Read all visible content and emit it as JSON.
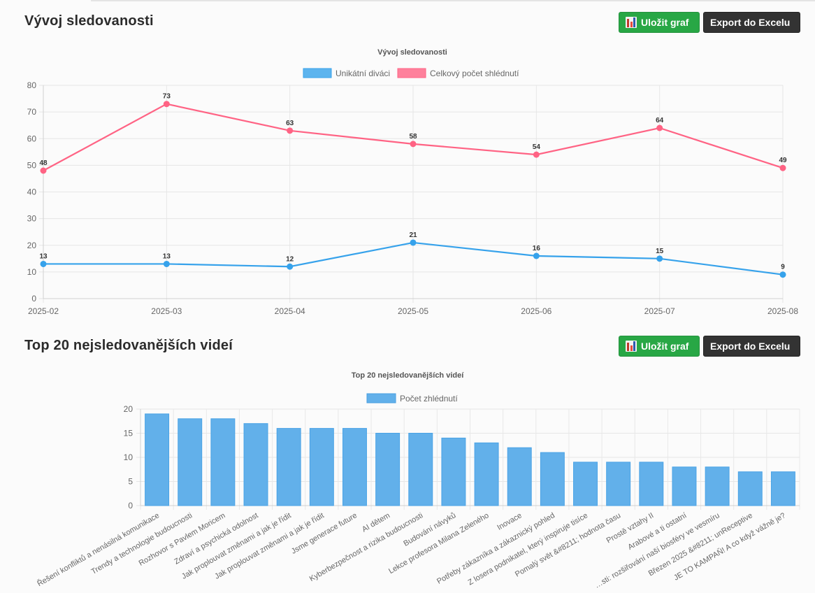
{
  "sections": [
    {
      "title": "Vývoj sledovanosti",
      "save_label": "Uložit graf",
      "export_label": "Export do Excelu",
      "save_icon": "bar-chart-icon"
    },
    {
      "title": "Top 20 nejsledovanějších videí",
      "save_label": "Uložit graf",
      "export_label": "Export do Excelu",
      "save_icon": "bar-chart-icon"
    }
  ],
  "colors": {
    "blue": "#36a2eb",
    "blue_fill": "#62b0ea",
    "pink": "#ff6384",
    "save_green": "#28a745",
    "export_dark": "#333333"
  },
  "chart_data": [
    {
      "type": "line",
      "title": "Vývoj sledovanosti",
      "x": [
        "2025-02",
        "2025-03",
        "2025-04",
        "2025-05",
        "2025-06",
        "2025-07",
        "2025-08"
      ],
      "series": [
        {
          "name": "Unikátní diváci",
          "color": "#36a2eb",
          "values": [
            13,
            13,
            12,
            21,
            16,
            15,
            9
          ]
        },
        {
          "name": "Celkový počet shlédnutí",
          "color": "#ff6384",
          "values": [
            48,
            73,
            63,
            58,
            54,
            64,
            49
          ]
        }
      ],
      "xlabel": "",
      "ylabel": "",
      "ylim": [
        0,
        80
      ],
      "yticks": [
        0,
        10,
        20,
        30,
        40,
        50,
        60,
        70,
        80
      ],
      "grid": true,
      "legend": "top-center",
      "data_labels": true
    },
    {
      "type": "bar",
      "title": "Top 20 nejsledovanějších videí",
      "categories": [
        "Řešení konfliktů a nenásilná komunikace",
        "Trendy a technologie budoucnosti",
        "Rozhovor s Pavlem Moricem",
        "Zdraví a psychická odolnost",
        "Jak proplouvat změnami a jak je řídit",
        "Jak proplouvat změnami a jak je řídit",
        "Jsme generace future",
        "AI dětem",
        "Kyberbezpečnost a rizika budoucnosti",
        "Budování návyků",
        "Lekce profesora Milana Zeleného",
        "Inovace",
        "Potřeby zákazníka a zákaznický pohled",
        "Z losera podnikatel, který inspiruje tisíce",
        "Pomalý svět &#8211; hodnota času",
        "Prostě vztahy II",
        "Arabové a ti ostatní",
        "…sti: rozšiřování naší biosféry ve vesmíru",
        "Březen 2025 &#8211; unReceptive",
        "JE TO KAMPAŇ! A co když vážně je?"
      ],
      "series": [
        {
          "name": "Počet zhlédnutí",
          "color": "#62b0ea",
          "values": [
            19,
            18,
            18,
            17,
            16,
            16,
            16,
            15,
            15,
            14,
            13,
            12,
            11,
            9,
            9,
            9,
            8,
            8,
            7,
            7
          ]
        }
      ],
      "xlabel": "",
      "ylabel": "",
      "ylim": [
        0,
        20
      ],
      "yticks": [
        0,
        5,
        10,
        15,
        20
      ],
      "grid": true,
      "legend": "top-center"
    }
  ]
}
